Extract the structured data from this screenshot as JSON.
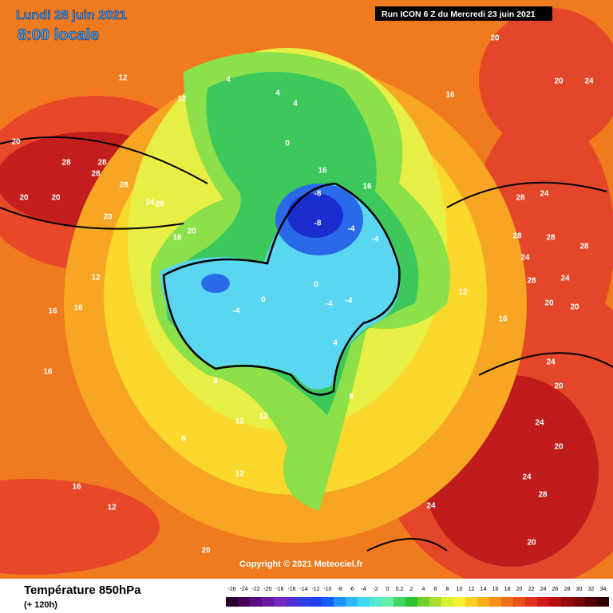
{
  "header": {
    "date": "Lundi 28 juin 2021",
    "time": "8:00 locale",
    "run": "Run ICON 6 Z du Mercredi 23 juin 2021"
  },
  "copyright": "Copyright © 2021 Meteociel.fr",
  "footer": {
    "title": "Température 850hPa",
    "lead": "(+ 120h)"
  },
  "colorbar": {
    "labels": [
      "-26",
      "-24",
      "-22",
      "-20",
      "-18",
      "-16",
      "-14",
      "-12",
      "-10",
      "-8",
      "-6",
      "-4",
      "-2",
      "0",
      "0.2",
      "2",
      "4",
      "6",
      "8",
      "10",
      "12",
      "14",
      "16",
      "18",
      "20",
      "22",
      "24",
      "26",
      "28",
      "30",
      "32",
      "34"
    ]
  },
  "map_labels": [
    "28",
    "28",
    "28",
    "28",
    "20",
    "20",
    "24",
    "28",
    "20",
    "16",
    "12",
    "12",
    "12",
    "16",
    "16",
    "16",
    "20",
    "-8",
    "-8",
    "-4",
    "-4",
    "0",
    "0",
    "4",
    "4",
    "4",
    "0",
    "-4",
    "-4",
    "-4",
    "4",
    "8",
    "8",
    "8",
    "12",
    "12",
    "12",
    "16",
    "16",
    "20",
    "20",
    "20",
    "24",
    "24",
    "28",
    "28",
    "28",
    "28",
    "24",
    "24",
    "28",
    "24",
    "20",
    "20",
    "16",
    "12",
    "20",
    "24",
    "12",
    "16",
    "16",
    "20",
    "24",
    "20",
    "28",
    "24",
    "20"
  ]
}
